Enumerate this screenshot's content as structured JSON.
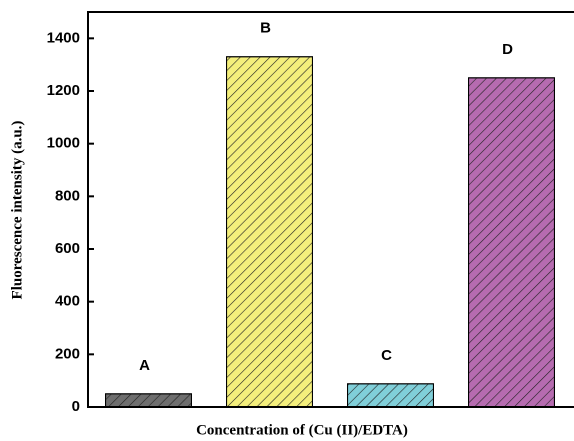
{
  "chart_data": {
    "type": "bar",
    "x_label": "Concentration of (Cu (II)/EDTA)",
    "y_label": "Fluorescence intensity (a.u.)",
    "categories": [
      "A",
      "B",
      "C",
      "D"
    ],
    "values": [
      50,
      1330,
      88,
      1250
    ],
    "colors": [
      "#6e6e6e",
      "#f4ef7c",
      "#80cfd9",
      "#b66bb0"
    ],
    "hatch": true,
    "ylim": [
      0,
      1500
    ],
    "yticks": [
      0,
      200,
      400,
      600,
      800,
      1000,
      1200,
      1400
    ]
  }
}
